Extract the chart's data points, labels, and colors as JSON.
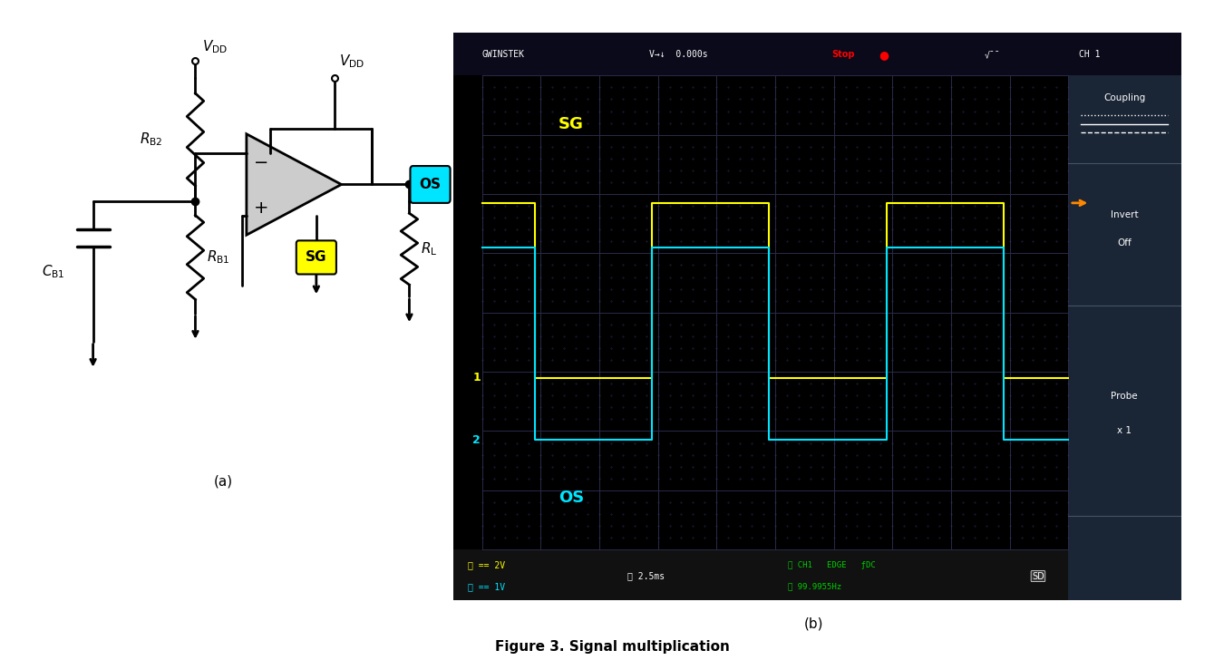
{
  "fig_width": 13.5,
  "fig_height": 7.28,
  "bg_color": "#ffffff",
  "caption": "Figure 3. Signal multiplication",
  "caption_fontsize": 11,
  "osc": {
    "bg_color": "#000000",
    "grid_color": "#2a2a4a",
    "ch1_color": "#ffff00",
    "ch2_color": "#00e5ff",
    "label_color_sg": "#ffff00",
    "label_color_os": "#00e5ff",
    "right_panel_bg": "#1a2535",
    "right_text_color": "#ffffff",
    "orange_marker_color": "#ff8800"
  },
  "circuit": {
    "line_color": "#000000",
    "line_width": 2.0,
    "os_bg": "#00e5ff",
    "sg_bg": "#ffff00",
    "label_a": "(a)",
    "label_b": "(b)"
  }
}
